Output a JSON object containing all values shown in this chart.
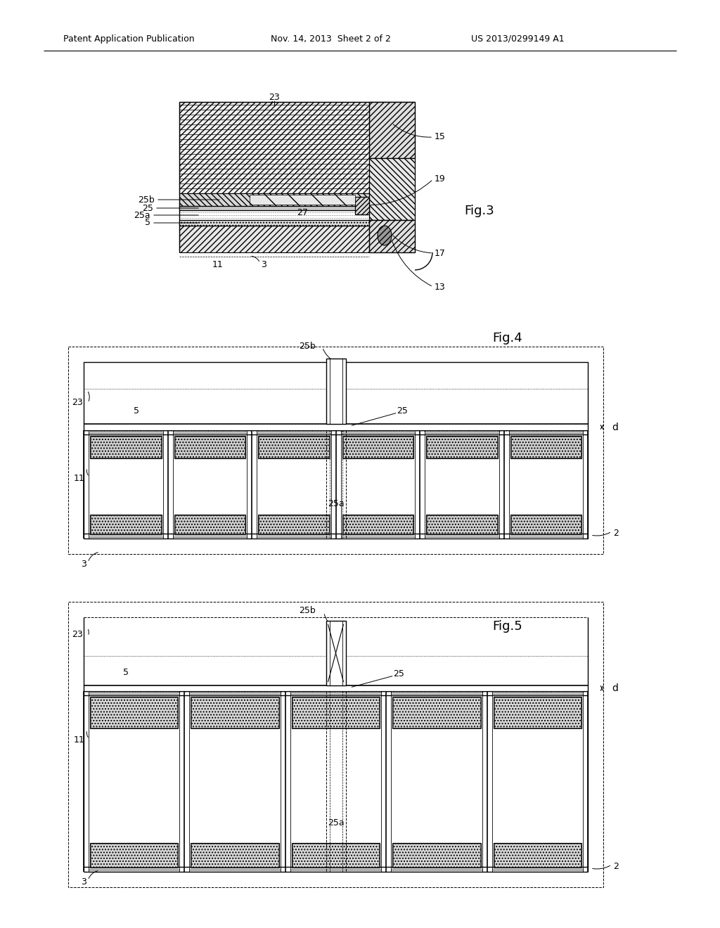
{
  "background_color": "#ffffff",
  "header_text": "Patent Application Publication",
  "header_date": "Nov. 14, 2013  Sheet 2 of 2",
  "header_patent": "US 2013/0299149 A1",
  "fig3_label": "Fig.3",
  "fig4_label": "Fig.4",
  "fig5_label": "Fig.5",
  "line_color": "#000000"
}
